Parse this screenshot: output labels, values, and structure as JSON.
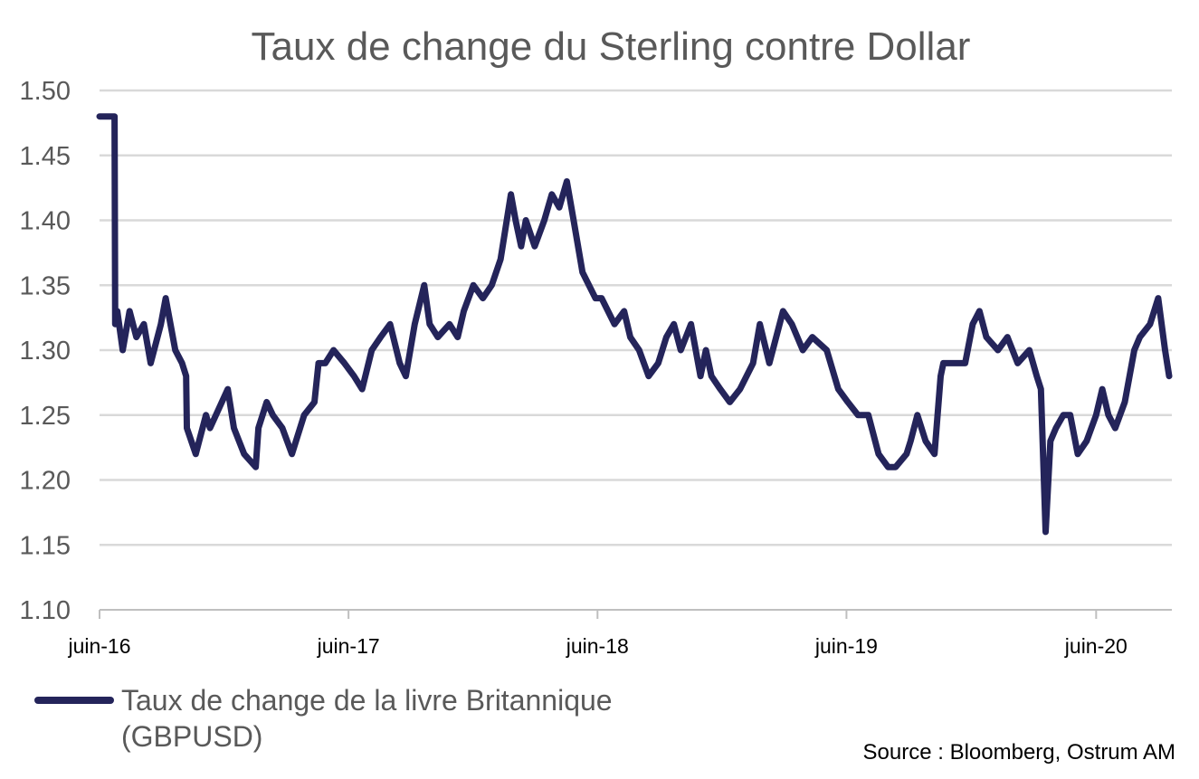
{
  "chart_data": {
    "type": "line",
    "title": "Taux de change du Sterling contre Dollar",
    "xlabel": "",
    "ylabel": "",
    "ylim": [
      1.1,
      1.5
    ],
    "yticks": [
      "1.50",
      "1.45",
      "1.40",
      "1.35",
      "1.30",
      "1.25",
      "1.20",
      "1.15",
      "1.10"
    ],
    "xticks": [
      "juin-16",
      "juin-17",
      "juin-18",
      "juin-19",
      "juin-20"
    ],
    "grid": true,
    "legend_position": "bottom-left",
    "line_color": "#24245a",
    "series": [
      {
        "name": "Taux de change de la livre Britannique (GBPUSD)",
        "x": [
          "2016-06-01",
          "2016-06-23",
          "2016-06-24",
          "2016-06-27",
          "2016-07-05",
          "2016-07-15",
          "2016-07-25",
          "2016-08-05",
          "2016-08-15",
          "2016-08-30",
          "2016-09-06",
          "2016-09-20",
          "2016-09-30",
          "2016-10-06",
          "2016-10-07",
          "2016-10-20",
          "2016-11-04",
          "2016-11-10",
          "2016-12-06",
          "2016-12-15",
          "2016-12-30",
          "2017-01-16",
          "2017-01-20",
          "2017-02-01",
          "2017-02-10",
          "2017-02-24",
          "2017-03-10",
          "2017-03-28",
          "2017-04-12",
          "2017-04-18",
          "2017-04-28",
          "2017-05-10",
          "2017-05-26",
          "2017-06-09",
          "2017-06-21",
          "2017-07-05",
          "2017-07-18",
          "2017-08-01",
          "2017-08-15",
          "2017-08-24",
          "2017-09-06",
          "2017-09-20",
          "2017-09-28",
          "2017-10-10",
          "2017-10-27",
          "2017-11-08",
          "2017-11-17",
          "2017-12-01",
          "2017-12-15",
          "2017-12-28",
          "2018-01-10",
          "2018-01-25",
          "2018-02-01",
          "2018-02-09",
          "2018-02-16",
          "2018-03-01",
          "2018-03-15",
          "2018-03-26",
          "2018-04-06",
          "2018-04-17",
          "2018-04-27",
          "2018-05-10",
          "2018-05-29",
          "2018-06-07",
          "2018-06-26",
          "2018-07-10",
          "2018-07-19",
          "2018-08-01",
          "2018-08-15",
          "2018-08-29",
          "2018-09-10",
          "2018-09-21",
          "2018-10-01",
          "2018-10-16",
          "2018-10-30",
          "2018-11-07",
          "2018-11-15",
          "2018-11-28",
          "2018-12-12",
          "2018-12-27",
          "2019-01-15",
          "2019-01-25",
          "2019-02-08",
          "2019-02-28",
          "2019-03-13",
          "2019-03-29",
          "2019-04-12",
          "2019-05-03",
          "2019-05-20",
          "2019-06-03",
          "2019-06-18",
          "2019-07-03",
          "2019-07-18",
          "2019-08-01",
          "2019-08-12",
          "2019-08-28",
          "2019-09-03",
          "2019-09-13",
          "2019-09-25",
          "2019-10-08",
          "2019-10-17",
          "2019-10-21",
          "2019-11-05",
          "2019-11-22",
          "2019-12-03",
          "2019-12-13",
          "2019-12-23",
          "2020-01-09",
          "2020-01-23",
          "2020-02-07",
          "2020-02-24",
          "2020-03-06",
          "2020-03-12",
          "2020-03-19",
          "2020-03-26",
          "2020-04-03",
          "2020-04-14",
          "2020-04-24",
          "2020-05-05",
          "2020-05-18",
          "2020-06-01",
          "2020-06-10",
          "2020-06-19",
          "2020-06-29",
          "2020-07-13",
          "2020-07-27",
          "2020-08-04",
          "2020-08-19",
          "2020-08-31",
          "2020-09-10",
          "2020-09-16"
        ],
        "values": [
          1.48,
          1.48,
          1.32,
          1.33,
          1.3,
          1.33,
          1.31,
          1.32,
          1.29,
          1.32,
          1.34,
          1.3,
          1.29,
          1.28,
          1.24,
          1.22,
          1.25,
          1.24,
          1.27,
          1.24,
          1.22,
          1.21,
          1.24,
          1.26,
          1.25,
          1.24,
          1.22,
          1.25,
          1.26,
          1.29,
          1.29,
          1.3,
          1.29,
          1.28,
          1.27,
          1.3,
          1.31,
          1.32,
          1.29,
          1.28,
          1.32,
          1.35,
          1.32,
          1.31,
          1.32,
          1.31,
          1.33,
          1.35,
          1.34,
          1.35,
          1.37,
          1.42,
          1.4,
          1.38,
          1.4,
          1.38,
          1.4,
          1.42,
          1.41,
          1.43,
          1.4,
          1.36,
          1.34,
          1.34,
          1.32,
          1.33,
          1.31,
          1.3,
          1.28,
          1.29,
          1.31,
          1.32,
          1.3,
          1.32,
          1.28,
          1.3,
          1.28,
          1.27,
          1.26,
          1.27,
          1.29,
          1.32,
          1.29,
          1.33,
          1.32,
          1.3,
          1.31,
          1.3,
          1.27,
          1.26,
          1.25,
          1.25,
          1.22,
          1.21,
          1.21,
          1.22,
          1.23,
          1.25,
          1.23,
          1.22,
          1.28,
          1.29,
          1.29,
          1.29,
          1.32,
          1.33,
          1.31,
          1.3,
          1.31,
          1.29,
          1.3,
          1.28,
          1.27,
          1.16,
          1.23,
          1.24,
          1.25,
          1.25,
          1.22,
          1.23,
          1.25,
          1.27,
          1.25,
          1.24,
          1.26,
          1.3,
          1.31,
          1.32,
          1.34,
          1.3,
          1.28
        ]
      }
    ],
    "source": "Source : Bloomberg, Ostrum AM"
  }
}
